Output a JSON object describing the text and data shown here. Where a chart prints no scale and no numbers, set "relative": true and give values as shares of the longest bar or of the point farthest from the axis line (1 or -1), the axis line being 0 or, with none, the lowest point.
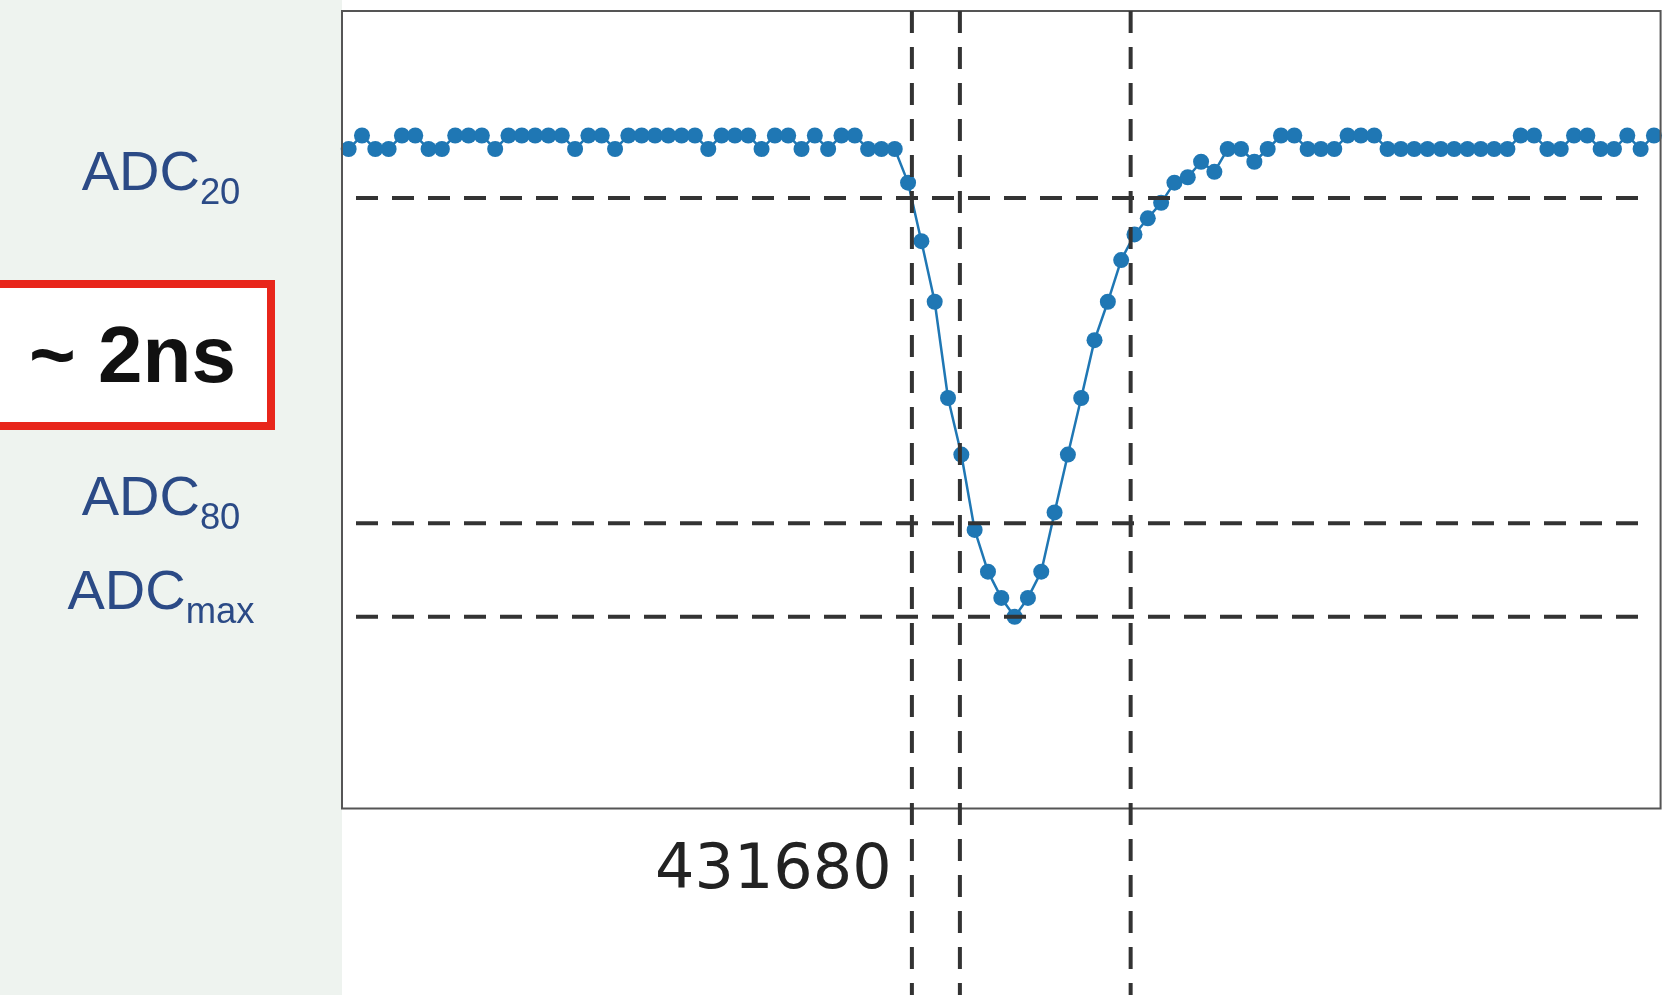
{
  "chart_data": {
    "type": "line",
    "relative": true,
    "tick_labels": "x",
    "marker": "circle",
    "color": "#1f77b4",
    "categories": [
      null,
      null,
      null,
      null,
      null,
      null,
      null,
      null,
      null,
      null,
      null,
      null,
      null,
      null,
      null,
      null,
      null,
      null,
      null,
      null,
      null,
      null,
      null,
      null,
      null,
      null,
      null,
      null,
      null,
      null,
      null,
      null,
      null,
      null,
      null,
      null,
      null,
      null,
      null,
      null,
      null,
      null,
      null,
      null,
      null,
      null,
      null,
      null,
      null,
      null,
      null,
      null,
      null,
      null,
      null,
      null,
      null,
      null,
      null,
      null,
      null,
      null,
      null,
      null,
      null,
      null,
      null,
      null,
      null,
      null,
      null,
      null,
      null,
      null,
      null,
      null,
      null,
      null,
      null,
      null,
      null,
      null,
      null,
      null,
      null,
      null,
      null,
      null,
      null,
      null,
      null,
      null,
      null,
      null,
      null,
      null,
      null,
      null,
      null
    ],
    "values": [
      0.98,
      1,
      0.98,
      0.98,
      1,
      1,
      0.98,
      0.98,
      1,
      1,
      1,
      0.98,
      1,
      1,
      1,
      1,
      1,
      0.98,
      1,
      1,
      0.98,
      1,
      1,
      1,
      1,
      1,
      1,
      0.98,
      1,
      1,
      1,
      0.98,
      1,
      1,
      0.98,
      1,
      0.98,
      1,
      1,
      0.98,
      0.98,
      0.98,
      0.93,
      0.843,
      0.753,
      0.61,
      0.526,
      0.414,
      0.352,
      0.313,
      0.285,
      0.313,
      0.352,
      0.44,
      0.526,
      0.61,
      0.696,
      0.753,
      0.815,
      0.853,
      0.877,
      0.9,
      0.93,
      0.938,
      0.961,
      0.946,
      0.98,
      0.98,
      0.961,
      0.98,
      1,
      1,
      0.98,
      0.98,
      0.98,
      1,
      1,
      1,
      0.98,
      0.98,
      0.98,
      0.98,
      0.98,
      0.98,
      0.98,
      0.98,
      0.98,
      0.98,
      1,
      1,
      0.98,
      0.98,
      1,
      1,
      0.98,
      0.98,
      1,
      0.98,
      1
    ],
    "ref_lines": [
      {
        "axis": "y",
        "value": 0.907,
        "label": "ADC$_{20}$",
        "line_style": "dashed"
      },
      {
        "axis": "y",
        "value": 0.424,
        "label": "ADC$_{80}$",
        "line_style": "dashed"
      },
      {
        "axis": "y",
        "value": 0.285,
        "label": "ADC$_{max}$",
        "line_style": "dashed"
      }
    ],
    "annotations": [
      "~ 2ns",
      "431680"
    ]
  }
}
